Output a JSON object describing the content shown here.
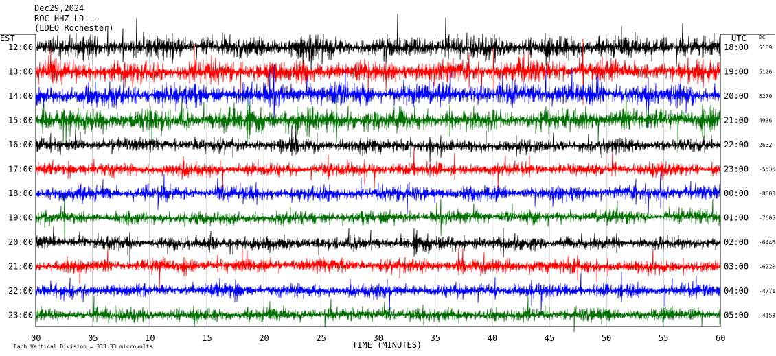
{
  "header": {
    "date": "Dec29,2024",
    "station": "ROC HHZ LD --",
    "location": "(LDEO Rochester)"
  },
  "chart_data": {
    "type": "line",
    "left_axis_label": "EST",
    "right_axis_label": "UTC",
    "dc_label": "DC",
    "xlabel": "TIME (MINUTES)",
    "x_ticks": [
      "00",
      "05",
      "10",
      "15",
      "20",
      "25",
      "30",
      "35",
      "40",
      "45",
      "50",
      "55",
      "60"
    ],
    "xlim": [
      0,
      60
    ],
    "grid": "vertical every 5 minutes",
    "trace_colors": [
      "#000000",
      "#ff0000",
      "#0000ff",
      "#007000"
    ],
    "rows": [
      {
        "est": "12:00",
        "utc": "18:00",
        "dc": "5139"
      },
      {
        "est": "13:00",
        "utc": "19:00",
        "dc": "5126"
      },
      {
        "est": "14:00",
        "utc": "20:00",
        "dc": "5270"
      },
      {
        "est": "15:00",
        "utc": "21:00",
        "dc": "4936"
      },
      {
        "est": "16:00",
        "utc": "22:00",
        "dc": "2632"
      },
      {
        "est": "17:00",
        "utc": "23:00",
        "dc": "-5536"
      },
      {
        "est": "18:00",
        "utc": "00:00",
        "dc": "-8003"
      },
      {
        "est": "19:00",
        "utc": "01:00",
        "dc": "-7605"
      },
      {
        "est": "20:00",
        "utc": "02:00",
        "dc": "-6446"
      },
      {
        "est": "21:00",
        "utc": "03:00",
        "dc": "-6220"
      },
      {
        "est": "22:00",
        "utc": "04:00",
        "dc": "-4771"
      },
      {
        "est": "23:00",
        "utc": "05:00",
        "dc": "-4158"
      }
    ],
    "footer_note": "Each Vertical Division = 333.33 microvolts"
  }
}
